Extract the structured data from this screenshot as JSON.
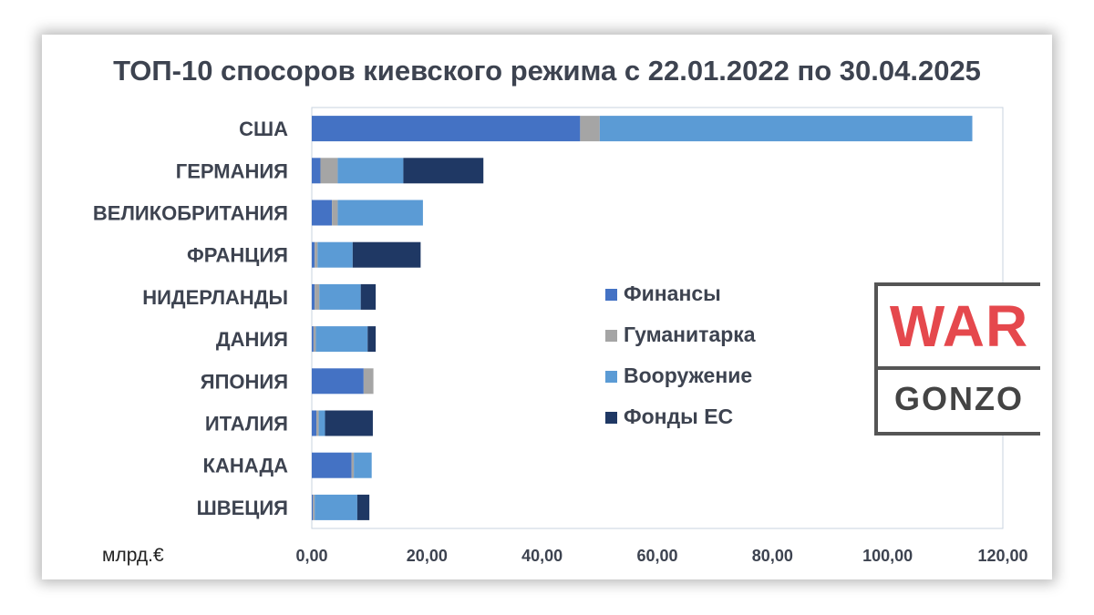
{
  "chart_data": {
    "type": "bar",
    "orientation": "horizontal",
    "stacked": true,
    "title": "ТОП-10 спосоров киевского режима с 22.01.2022 по 30.04.2025",
    "unit_label": "млрд.€",
    "categories": [
      "США",
      "ГЕРМАНИЯ",
      "ВЕЛИКОБРИТАНИЯ",
      "ФРАНЦИЯ",
      "НИДЕРЛАНДЫ",
      "ДАНИЯ",
      "ЯПОНИЯ",
      "ИТАЛИЯ",
      "КАНАДА",
      "ШВЕЦИЯ"
    ],
    "series": [
      {
        "name": "Финансы",
        "color": "#4472c4",
        "values": [
          46.6,
          1.5,
          3.5,
          0.5,
          0.5,
          0.3,
          9.0,
          0.8,
          6.9,
          0.2
        ]
      },
      {
        "name": "Гуманитарка",
        "color": "#a5a5a5",
        "values": [
          3.4,
          3.0,
          1.0,
          0.5,
          0.8,
          0.4,
          1.7,
          0.4,
          0.4,
          0.3
        ]
      },
      {
        "name": "Вооружение",
        "color": "#5b9bd5",
        "values": [
          64.7,
          11.4,
          14.8,
          6.1,
          7.2,
          9.0,
          0,
          1.1,
          3.1,
          7.4
        ]
      },
      {
        "name": "Фонды ЕС",
        "color": "#1f3864",
        "values": [
          0,
          13.9,
          0,
          11.8,
          2.6,
          1.4,
          0,
          8.3,
          0,
          2.1
        ]
      }
    ],
    "xlim": [
      0,
      120
    ],
    "xticks": [
      "0,00",
      "20,00",
      "40,00",
      "60,00",
      "80,00",
      "100,00",
      "120,00"
    ],
    "legend_position": "center-right"
  },
  "logo": {
    "top_text": "WAR",
    "bottom_text": "GONZO"
  }
}
